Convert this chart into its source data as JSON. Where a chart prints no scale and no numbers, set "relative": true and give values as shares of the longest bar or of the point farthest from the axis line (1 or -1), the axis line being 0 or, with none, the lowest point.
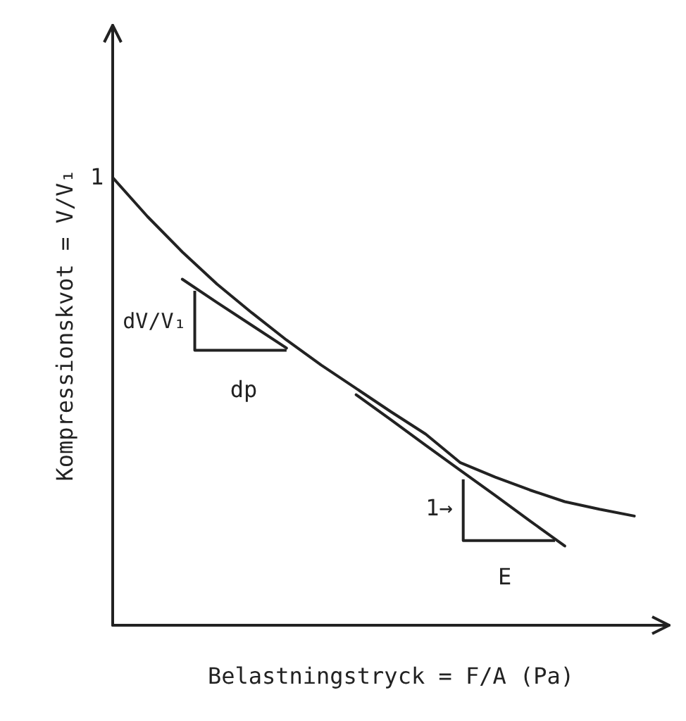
{
  "chart_data": {
    "type": "line",
    "relative": true,
    "xlabel": "Belastningstryck = F/A (Pa)",
    "ylabel": "Kompressionskvot = V/V₁",
    "categories": [
      null,
      null,
      null,
      null,
      null,
      null,
      null,
      null,
      null,
      null,
      null,
      null,
      null,
      null,
      null,
      null,
      null
    ],
    "series": [
      {
        "color": "#222222",
        "values": [
          1.0,
          0.913,
          0.834,
          0.762,
          0.698,
          0.637,
          0.581,
          0.529,
          0.477,
          0.427,
          0.363,
          0.331,
          0.302,
          0.276,
          0.259,
          0.244,
          null
        ]
      },
      {
        "color": "#222222",
        "values": [
          null,
          null,
          0.773,
          0.721,
          0.67,
          0.619,
          null,
          null,
          null,
          null,
          null,
          null,
          null,
          null,
          null,
          null,
          null
        ]
      },
      {
        "color": "#222222",
        "values": [
          null,
          null,
          null,
          null,
          null,
          null,
          null,
          0.515,
          0.459,
          0.402,
          0.346,
          0.29,
          0.233,
          0.177,
          null,
          null,
          null
        ]
      }
    ],
    "annotations": [
      "1",
      "dV/V₁",
      "dp",
      "1→",
      "E"
    ],
    "marker": "none",
    "line_style": "solid",
    "grid": false
  }
}
